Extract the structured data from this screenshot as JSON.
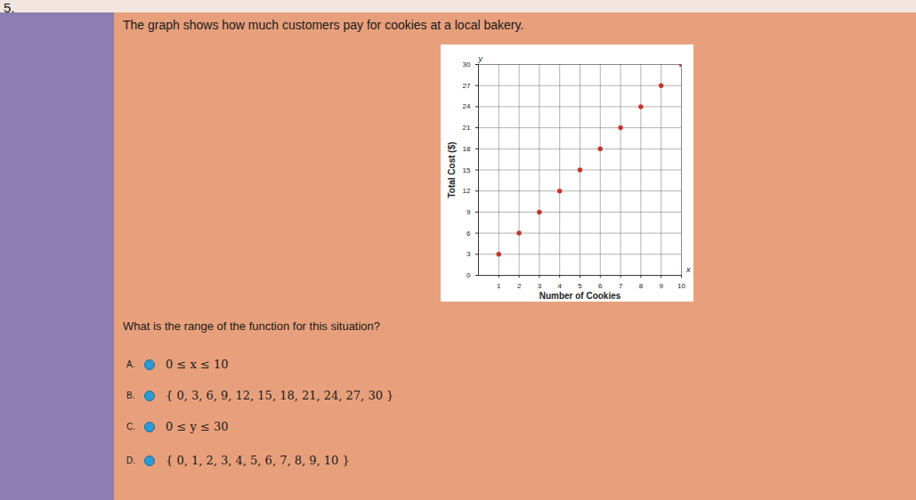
{
  "question_number": "5.",
  "prompt": "The graph shows how much customers pay for cookies at a local bakery.",
  "chart_data": {
    "type": "scatter",
    "x_label": "Number of Cookies",
    "y_label": "Total Cost ($)",
    "annotations": [
      "x",
      "y"
    ],
    "x": [
      1,
      2,
      3,
      4,
      5,
      6,
      7,
      8,
      9,
      10
    ],
    "values": [
      3,
      6,
      9,
      12,
      15,
      18,
      21,
      24,
      27,
      30
    ],
    "color": "#c0392b",
    "marker": "circle",
    "xlim": [
      0,
      10
    ],
    "xticks": [
      1,
      2,
      3,
      4,
      5,
      6,
      7,
      8,
      9,
      10
    ],
    "ylim": [
      0,
      30
    ],
    "yticks": [
      0,
      3,
      6,
      9,
      12,
      15,
      18,
      21,
      24,
      27,
      30
    ],
    "grid": true
  },
  "question": "What is the range of the function for this situation?",
  "options": [
    {
      "letter": "A.",
      "text": "0 ≤ x ≤ 10"
    },
    {
      "letter": "B.",
      "text": "{ 0, 3, 6, 9, 12, 15, 18, 21, 24, 27, 30 }"
    },
    {
      "letter": "C.",
      "text": "0 ≤ y ≤ 30"
    },
    {
      "letter": "D.",
      "text": "{ 0, 1, 2, 3, 4, 5, 6, 7, 8, 9, 10 }"
    }
  ]
}
